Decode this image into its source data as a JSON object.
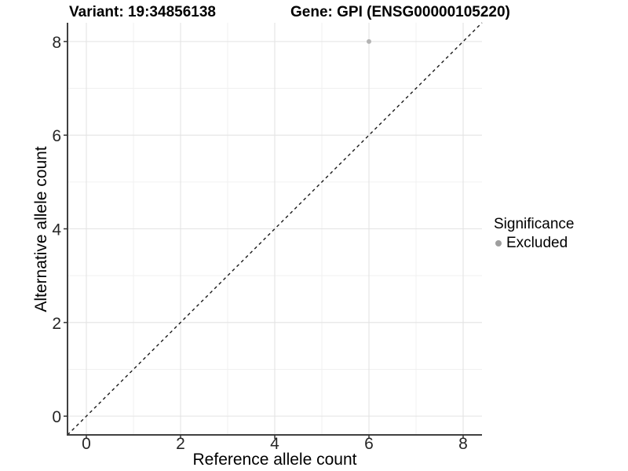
{
  "titles": {
    "variant": "Variant: 19:34856138",
    "gene": "Gene: GPI (ENSG00000105220)"
  },
  "legend": {
    "title": "Significance",
    "items": [
      {
        "label": "Excluded",
        "color": "#9e9e9e"
      }
    ]
  },
  "chart_data": {
    "type": "scatter",
    "title": "Variant: 19:34856138  /  Gene: GPI (ENSG00000105220)",
    "xlabel": "Reference allele count",
    "ylabel": "Alternative allele count",
    "xlim": [
      -0.4,
      8.4
    ],
    "ylim": [
      -0.4,
      8.4
    ],
    "x_ticks": [
      0,
      2,
      4,
      6,
      8
    ],
    "y_ticks": [
      0,
      2,
      4,
      6,
      8
    ],
    "x_minor_ticks": [
      1,
      3,
      5,
      7
    ],
    "y_minor_ticks": [
      1,
      3,
      5,
      7
    ],
    "grid": true,
    "legend_position": "right",
    "series": [
      {
        "name": "Excluded",
        "color": "#b4b4b4",
        "points": [
          {
            "x": 6,
            "y": 8
          }
        ]
      }
    ],
    "reference_line": {
      "type": "identity y=x",
      "from": {
        "x": -0.4,
        "y": -0.4
      },
      "to": {
        "x": 8.4,
        "y": 8.4
      },
      "style": "dashed",
      "color": "#1a1a1a"
    },
    "style_colors": {
      "major_grid": "#e3e3e3",
      "minor_grid": "#f0f0f0",
      "axis_line": "#404040",
      "tick_mark": "#333333",
      "tick_label": "#262626"
    }
  }
}
